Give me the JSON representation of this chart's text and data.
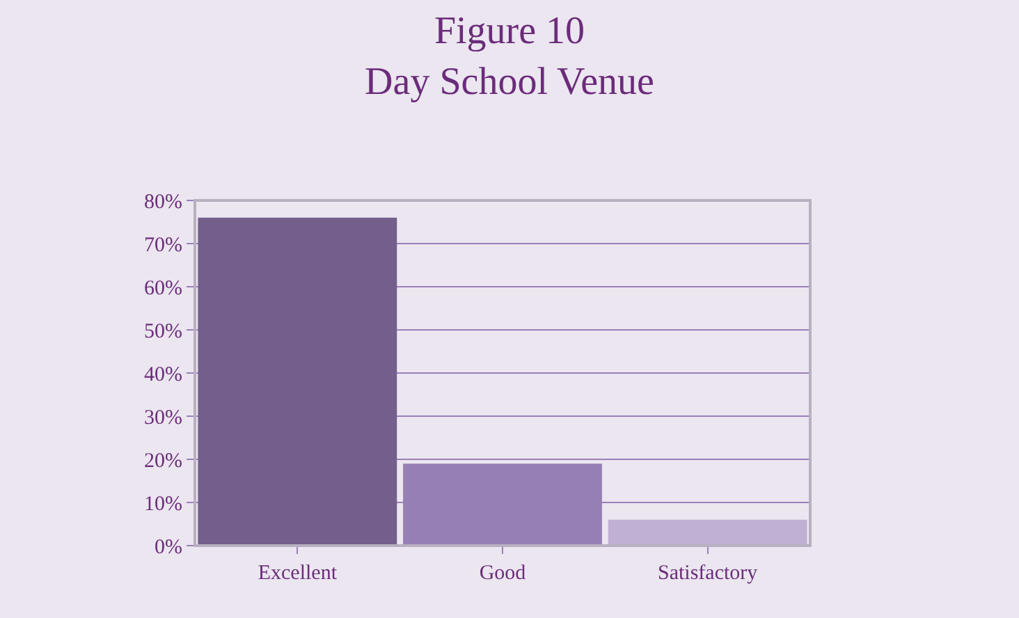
{
  "chart_data": {
    "type": "bar",
    "title": "Figure 10\nDay School Venue",
    "categories": [
      "Excellent",
      "Good",
      "Satisfactory"
    ],
    "values": [
      76,
      19,
      6
    ],
    "colors": [
      "#735e8c",
      "#9680b3",
      "#c0b0d3"
    ],
    "ylim": [
      0,
      80
    ],
    "yticks": [
      {
        "value": 0,
        "label": "0%"
      },
      {
        "value": 10,
        "label": "10%"
      },
      {
        "value": 20,
        "label": "20%"
      },
      {
        "value": 30,
        "label": "30%"
      },
      {
        "value": 40,
        "label": "40%"
      },
      {
        "value": 50,
        "label": "50%"
      },
      {
        "value": 60,
        "label": "60%"
      },
      {
        "value": 70,
        "label": "70%"
      },
      {
        "value": 80,
        "label": "80%"
      }
    ],
    "grid": "y",
    "legend": false
  }
}
